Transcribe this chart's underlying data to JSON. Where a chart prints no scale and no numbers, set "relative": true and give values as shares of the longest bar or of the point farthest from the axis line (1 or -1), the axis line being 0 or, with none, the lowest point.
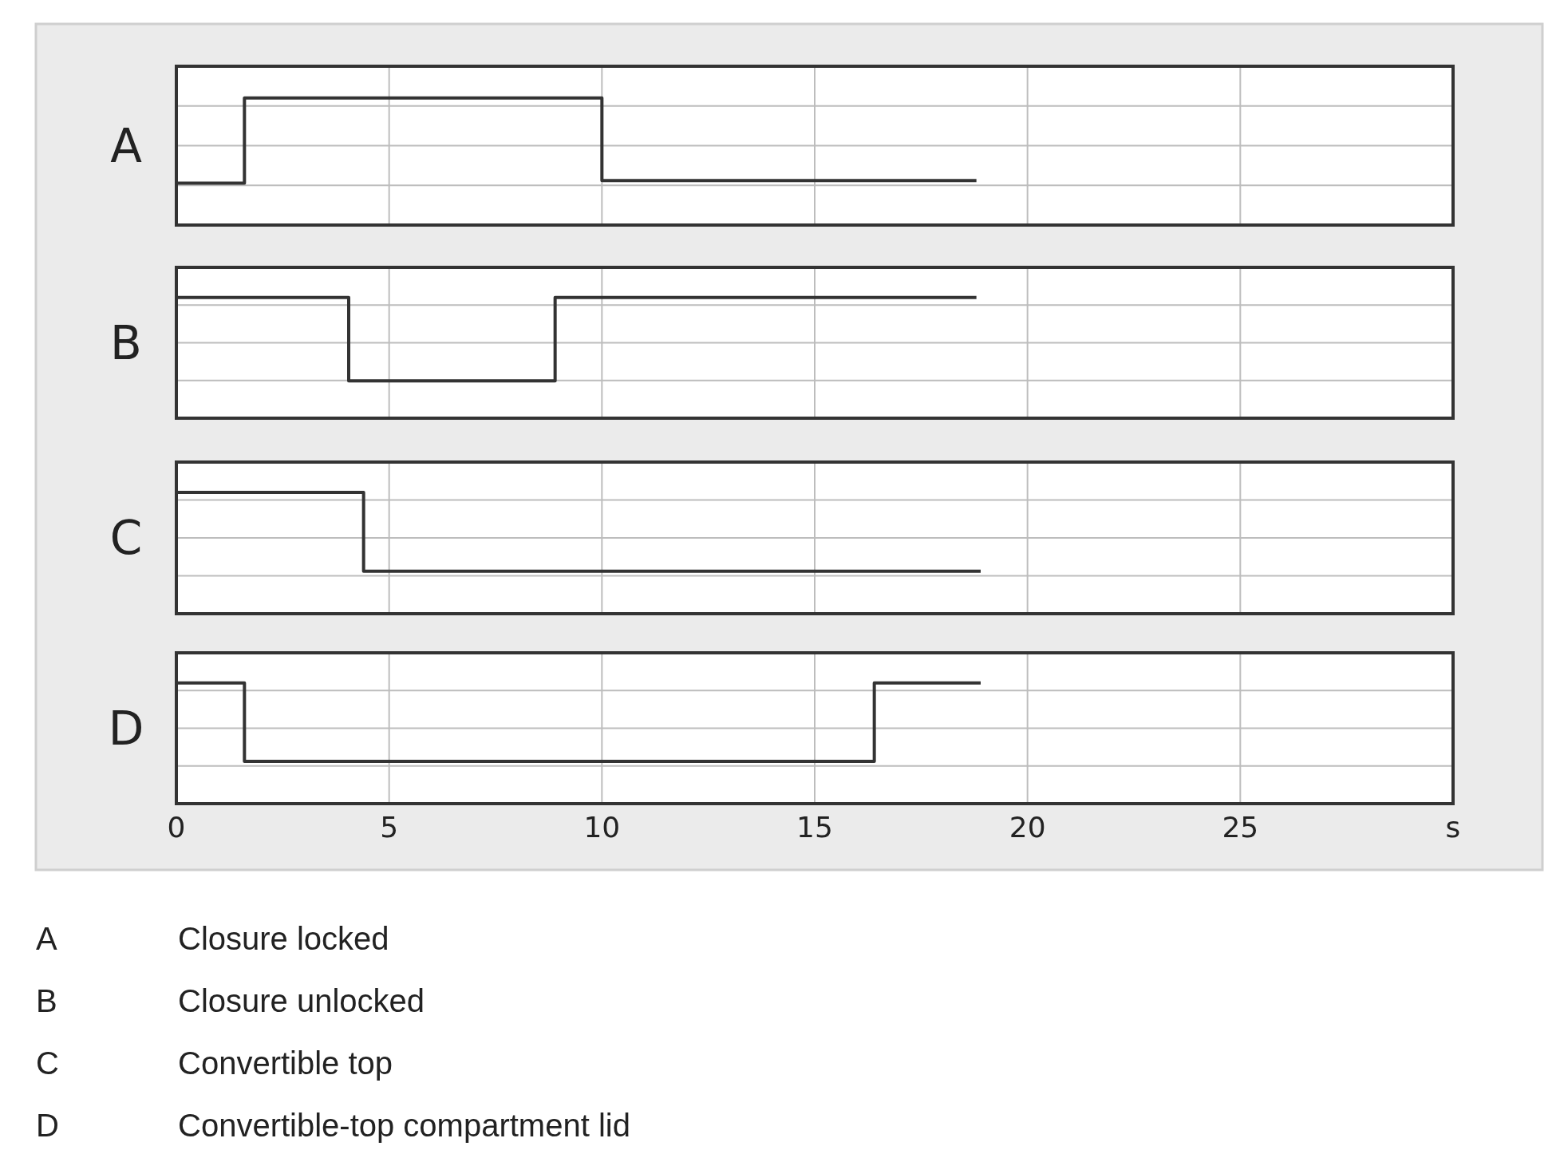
{
  "chart_data": [
    {
      "type": "step",
      "ylabel": "A",
      "relative": true,
      "x": [
        0,
        1.6,
        10,
        18.8
      ],
      "values": [
        0.33,
        1,
        0.35,
        0.35
      ],
      "color": "#333333",
      "xlim": [
        0,
        30
      ],
      "xticks": [
        0,
        5,
        10,
        15,
        20,
        25
      ],
      "grid": true,
      "tick_labels": false
    },
    {
      "type": "step",
      "ylabel": "B",
      "relative": true,
      "x": [
        0,
        4.05,
        8.9,
        18.8
      ],
      "values": [
        1,
        0.31,
        1,
        1
      ],
      "color": "#333333",
      "xlim": [
        0,
        30
      ],
      "xticks": [
        0,
        5,
        10,
        15,
        20,
        25
      ],
      "grid": true,
      "tick_labels": false
    },
    {
      "type": "step",
      "ylabel": "C",
      "relative": true,
      "x": [
        0,
        4.4,
        18.9
      ],
      "values": [
        1,
        0.35,
        0.35
      ],
      "color": "#333333",
      "xlim": [
        0,
        30
      ],
      "xticks": [
        0,
        5,
        10,
        15,
        20,
        25
      ],
      "grid": true,
      "tick_labels": false
    },
    {
      "type": "step",
      "ylabel": "D",
      "relative": true,
      "x": [
        0,
        1.6,
        16.4,
        18.9
      ],
      "values": [
        1,
        0.35,
        1,
        1
      ],
      "color": "#333333",
      "xlim": [
        0,
        30
      ],
      "xticks": [
        0,
        5,
        10,
        15,
        20,
        25,
        {
          "value": 30,
          "label": "s"
        }
      ],
      "grid": true,
      "tick_labels": "x"
    },
    {
      "type": "other",
      "annotations": [
        "A",
        "Closure locked",
        "B",
        "Closure unlocked",
        "C",
        "Convertible top",
        "D",
        "Convertible-top compartment lid"
      ]
    }
  ]
}
